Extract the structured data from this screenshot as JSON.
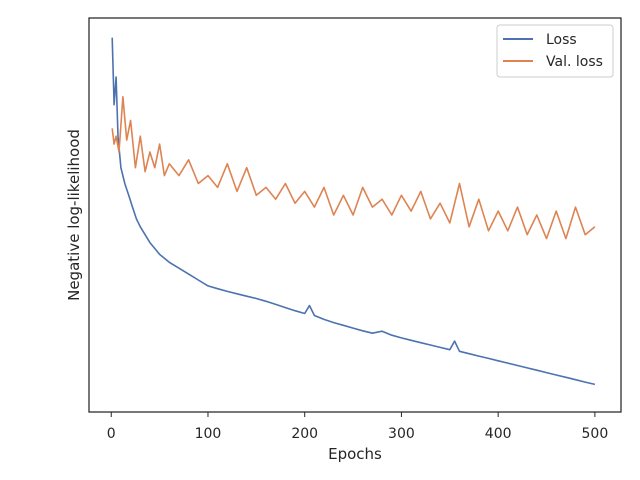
{
  "chart_data": {
    "type": "line",
    "xlabel": "Epochs",
    "ylabel": "Negative log-likelihood",
    "xlim": [
      -23,
      527
    ],
    "ylim": [
      0,
      100
    ],
    "xticks": [
      0,
      100,
      200,
      300,
      400,
      500
    ],
    "grid": false,
    "legend_position": "top-right",
    "series": [
      {
        "name": "Loss",
        "color": "#4c72b0",
        "x": [
          1,
          3,
          5,
          7,
          10,
          14,
          18,
          22,
          26,
          30,
          35,
          40,
          45,
          50,
          55,
          60,
          70,
          80,
          90,
          100,
          110,
          120,
          130,
          140,
          150,
          160,
          170,
          180,
          190,
          200,
          205,
          210,
          220,
          230,
          240,
          250,
          260,
          270,
          280,
          290,
          300,
          310,
          320,
          330,
          340,
          350,
          355,
          360,
          370,
          380,
          390,
          400,
          410,
          420,
          430,
          440,
          450,
          460,
          470,
          480,
          490,
          500
        ],
        "y": [
          95,
          78,
          85,
          70,
          62,
          58,
          55,
          52,
          49,
          47,
          45,
          43,
          41.5,
          40,
          39,
          38,
          36.5,
          35,
          33.5,
          32,
          31.3,
          30.6,
          30,
          29.4,
          28.8,
          28.1,
          27.3,
          26.5,
          25.7,
          25,
          27,
          24.5,
          23.5,
          22.7,
          22,
          21.3,
          20.6,
          20,
          20.5,
          19.5,
          18.8,
          18.2,
          17.6,
          17,
          16.4,
          15.8,
          18,
          15.4,
          14.8,
          14.2,
          13.6,
          13,
          12.4,
          11.8,
          11.2,
          10.6,
          10,
          9.4,
          8.8,
          8.2,
          7.6,
          7
        ]
      },
      {
        "name": "Val. loss",
        "color": "#dd8452",
        "x": [
          1,
          3,
          5,
          8,
          12,
          16,
          20,
          25,
          30,
          35,
          40,
          45,
          50,
          55,
          60,
          70,
          80,
          90,
          100,
          110,
          120,
          130,
          140,
          150,
          160,
          170,
          180,
          190,
          200,
          210,
          220,
          230,
          240,
          250,
          260,
          270,
          280,
          290,
          300,
          310,
          320,
          330,
          340,
          350,
          360,
          370,
          380,
          390,
          400,
          410,
          420,
          430,
          440,
          450,
          460,
          470,
          480,
          490,
          500
        ],
        "y": [
          72,
          68,
          70,
          66,
          80,
          69,
          74,
          62,
          70,
          61,
          66,
          62,
          68,
          60,
          63,
          60,
          64,
          58,
          60,
          57,
          63,
          56,
          62,
          55,
          57,
          54,
          58,
          53,
          56,
          52,
          57,
          50,
          55,
          50,
          57,
          52,
          54,
          50,
          55,
          51,
          56,
          49,
          53,
          48,
          58,
          47,
          54,
          46,
          51,
          46,
          52,
          45,
          50,
          44,
          51,
          44,
          52,
          45,
          47
        ]
      }
    ]
  }
}
